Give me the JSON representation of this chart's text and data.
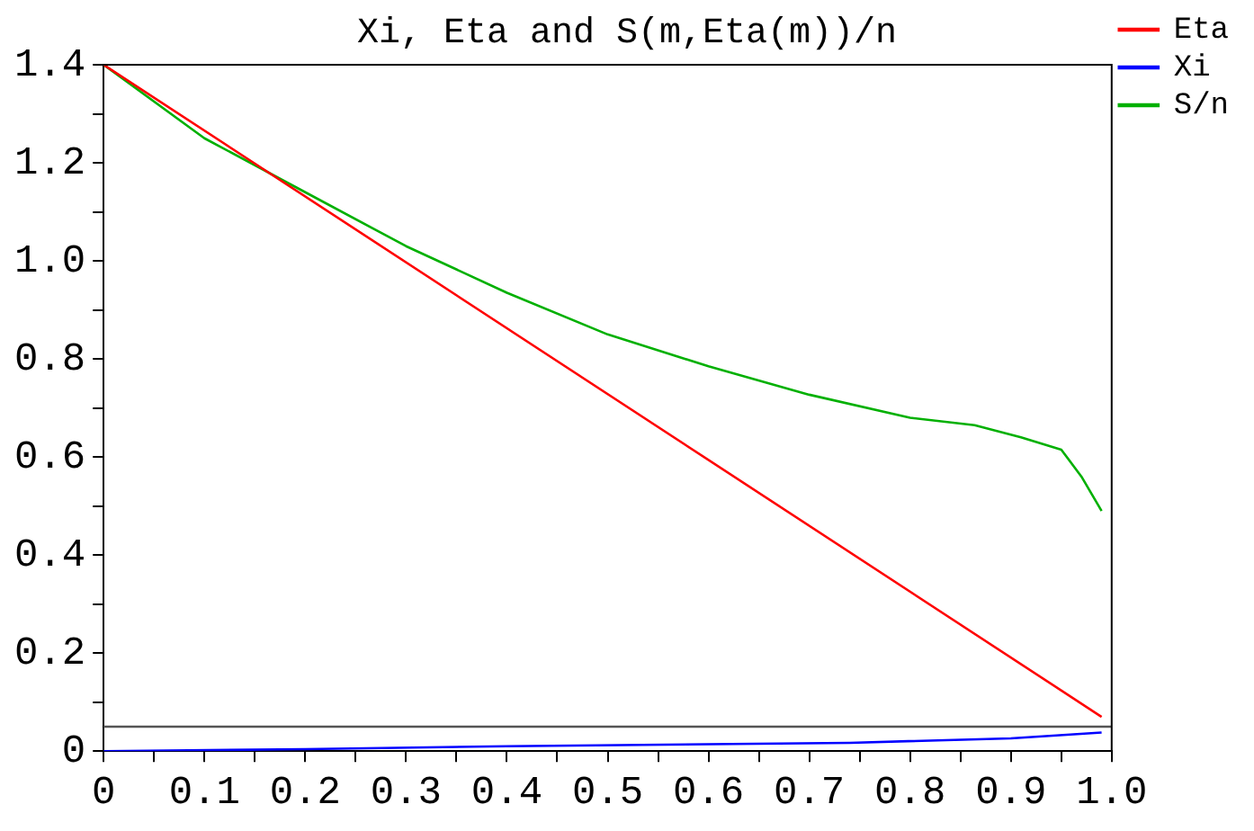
{
  "chart_data": {
    "type": "line",
    "title": "Xi, Eta and S(m,Eta(m))/n",
    "x": [
      0,
      0.1,
      0.2,
      0.3,
      0.4,
      0.5,
      0.6,
      0.7,
      0.8,
      0.864,
      0.91,
      0.95,
      0.97,
      0.99
    ],
    "series": [
      {
        "name": "Eta",
        "color": "#ff0000",
        "x": [
          0,
          0.99
        ],
        "values": [
          1.4,
          0.07
        ]
      },
      {
        "name": "Xi",
        "color": "#0000ff",
        "x": [
          0,
          0.2,
          0.4,
          0.6,
          0.74,
          0.9,
          0.99
        ],
        "values": [
          0,
          0.004,
          0.01,
          0.014,
          0.017,
          0.026,
          0.038
        ]
      },
      {
        "name": "S/n",
        "color": "#00b000",
        "values": [
          1.4,
          1.25,
          1.14,
          1.03,
          0.935,
          0.85,
          0.785,
          0.727,
          0.68,
          0.665,
          0.64,
          0.615,
          0.56,
          0.49
        ]
      }
    ],
    "xlim": [
      0,
      1
    ],
    "xticks": [
      0,
      {
        "value": 0.05,
        "label": null
      },
      0.1,
      {
        "value": 0.15,
        "label": null
      },
      0.2,
      {
        "value": 0.25,
        "label": null
      },
      0.3,
      {
        "value": 0.35,
        "label": null
      },
      0.4,
      {
        "value": 0.45,
        "label": null
      },
      0.5,
      {
        "value": 0.55,
        "label": null
      },
      0.6,
      {
        "value": 0.65,
        "label": null
      },
      0.7,
      {
        "value": 0.75,
        "label": null
      },
      0.8,
      {
        "value": 0.85,
        "label": null
      },
      0.9,
      {
        "value": 0.95,
        "label": null
      },
      {
        "value": 1,
        "label": "1.0"
      }
    ],
    "ylim": [
      0,
      1.4
    ],
    "yticks": [
      0,
      {
        "value": 0.1,
        "label": null
      },
      0.2,
      {
        "value": 0.3,
        "label": null
      },
      0.4,
      {
        "value": 0.5,
        "label": null
      },
      0.6,
      {
        "value": 0.7,
        "label": null
      },
      0.8,
      {
        "value": 0.9,
        "label": null
      },
      {
        "value": 1,
        "label": "1.0"
      },
      {
        "value": 1.1,
        "label": null
      },
      1.2,
      {
        "value": 1.3,
        "label": null
      },
      1.4
    ],
    "ref_lines": [
      {
        "axis": "y",
        "value": 0.05,
        "color": "#555555"
      }
    ],
    "legend": "top right",
    "grid": false,
    "marker": "none",
    "line_style": "solid"
  }
}
